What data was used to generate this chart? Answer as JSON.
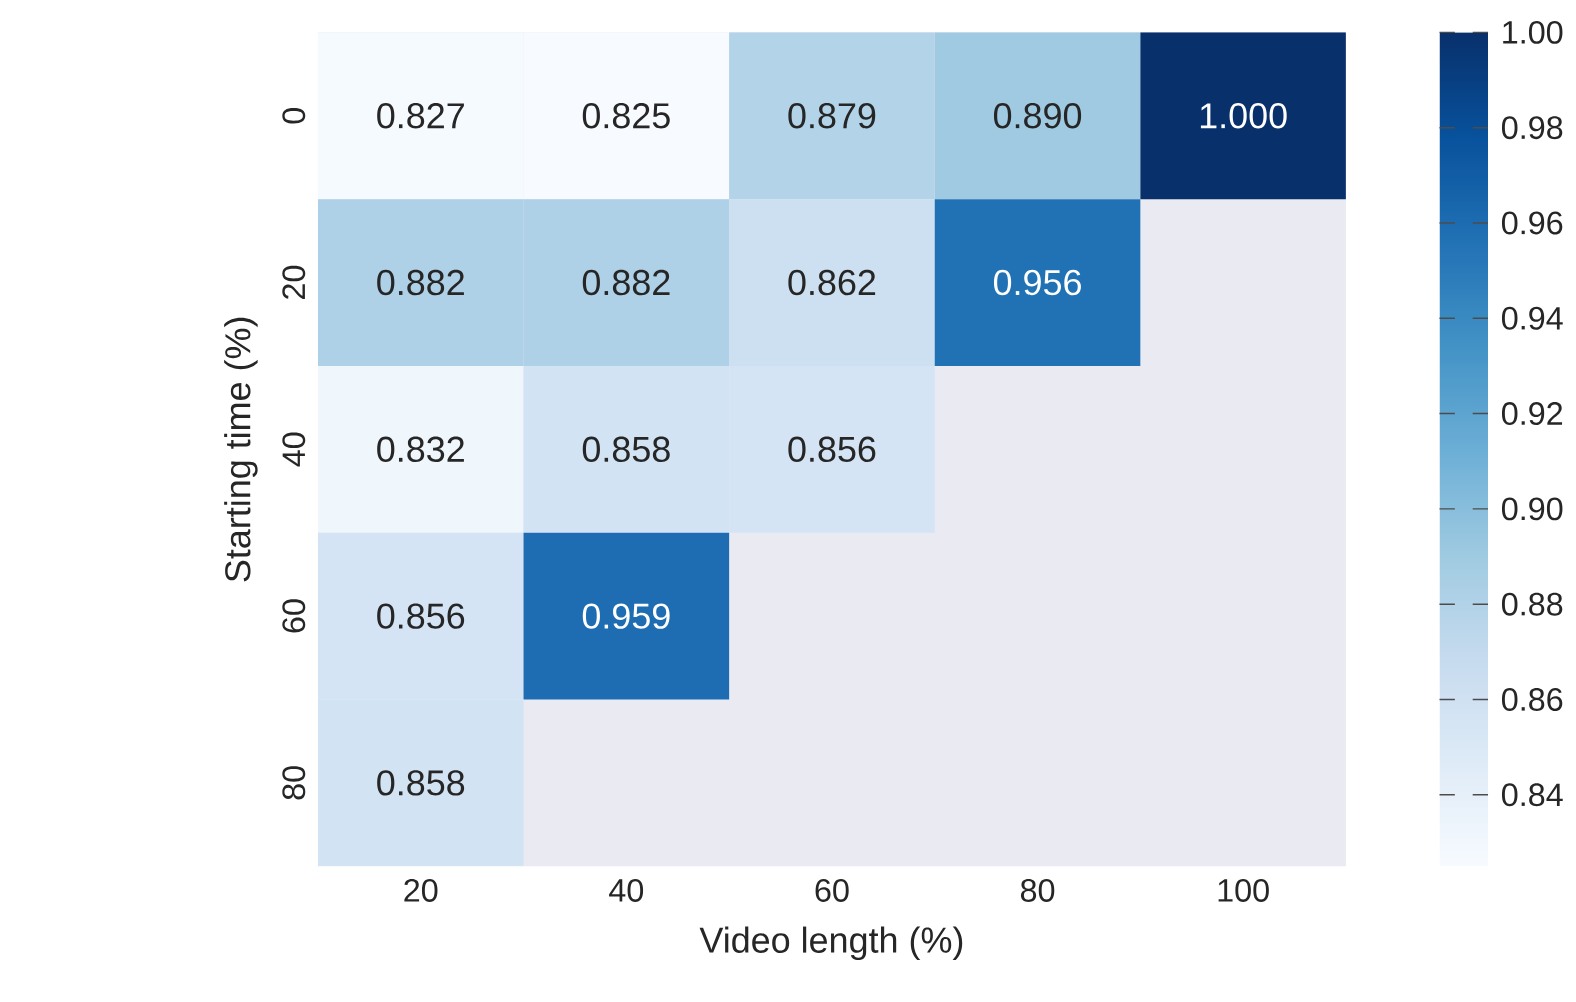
{
  "chart_data": {
    "type": "heatmap",
    "xlabel": "Video length (%)",
    "ylabel": "Starting time (%)",
    "categories": [
      "20",
      "40",
      "60",
      "80",
      "100"
    ],
    "y_categories": [
      "0",
      "20",
      "40",
      "60",
      "80"
    ],
    "cells": [
      [
        0.827,
        0.825,
        0.879,
        0.89,
        1.0
      ],
      [
        0.882,
        0.882,
        0.862,
        0.956,
        null
      ],
      [
        0.832,
        0.858,
        0.856,
        null,
        null
      ],
      [
        0.856,
        0.959,
        null,
        null,
        null
      ],
      [
        0.858,
        null,
        null,
        null,
        null
      ]
    ],
    "cell_labels": [
      [
        "0.827",
        "0.825",
        "0.879",
        "0.890",
        "1.000"
      ],
      [
        "0.882",
        "0.882",
        "0.862",
        "0.956",
        null
      ],
      [
        "0.832",
        "0.858",
        "0.856",
        null,
        null
      ],
      [
        "0.856",
        "0.959",
        null,
        null,
        null
      ],
      [
        "0.858",
        null,
        null,
        null,
        null
      ]
    ],
    "clim": [
      0.825,
      1.0
    ],
    "cticks": [
      {
        "value": 0.84,
        "label": "0.84"
      },
      {
        "value": 0.86,
        "label": "0.86"
      },
      {
        "value": 0.88,
        "label": "0.88"
      },
      {
        "value": 0.9,
        "label": "0.90"
      },
      {
        "value": 0.92,
        "label": "0.92"
      },
      {
        "value": 0.94,
        "label": "0.94"
      },
      {
        "value": 0.96,
        "label": "0.96"
      },
      {
        "value": 0.98,
        "label": "0.98"
      },
      {
        "value": 1.0,
        "label": "1.00"
      }
    ]
  }
}
